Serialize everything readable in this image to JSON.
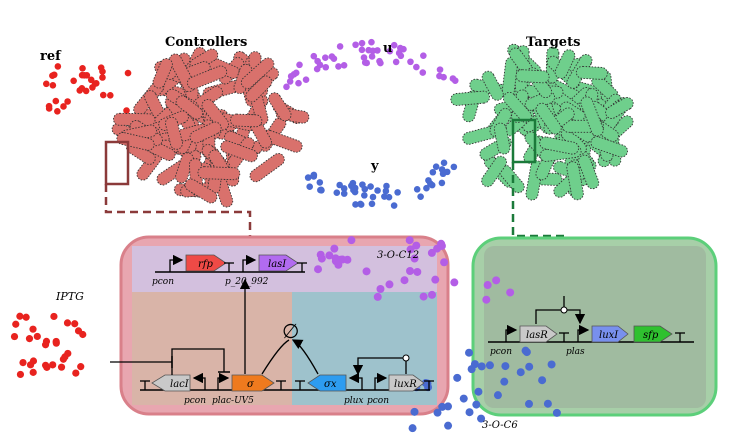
{
  "labels": {
    "ref": "ref",
    "controllers": "Controllers",
    "u": "u",
    "y": "y",
    "targets": "Targets",
    "iptg": "IPTG",
    "signal_top": "3-O-C12",
    "signal_bottom": "3-O-C6",
    "degradation": "∅"
  },
  "genes": {
    "rfp": "rfp",
    "lasI_ctrl": "lasI",
    "lacI": "lacI",
    "sigma": "σ",
    "sigma_x": "σx",
    "luxR": "luxR",
    "lasR": "lasR",
    "luxI_tgt": "luxI",
    "sfp": "sfp"
  },
  "promoters": {
    "pcon_top": "pcon",
    "p_20_992": "p_20_992",
    "pcon_lacI": "pcon",
    "plac_uv5": "plac-UV5",
    "plux": "plux",
    "pcon_luxR": "pcon",
    "pcon_tgt": "pcon",
    "plas": "plas"
  },
  "colors": {
    "controller_cell": "#d9716c",
    "controller_box_border": "#d9808a",
    "target_cell": "#6fcf8c",
    "target_box_border": "#5ccf7a",
    "ref_dots": "#e8231f",
    "u_dots": "#b35ee6",
    "y_dots": "#4a6bd1",
    "rfp": "#ef4a46",
    "lasI": "#b26bf0",
    "sigma": "#ef7a1e",
    "sigma_x": "#2d9cf0",
    "luxI": "#7890ee",
    "sfp": "#2fc12f",
    "grey_gene": "#c9c9c9"
  }
}
